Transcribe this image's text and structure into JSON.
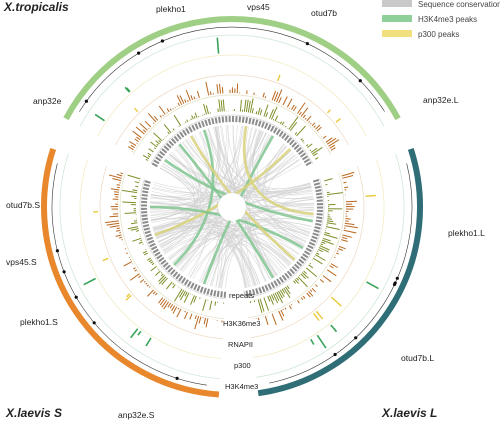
{
  "species": [
    {
      "id": "trop",
      "label": "X.tropicalis",
      "color": "#9fcf85"
    },
    {
      "id": "laevisL",
      "label": "X.laevis L",
      "color": "#2f6d77"
    },
    {
      "id": "laevisS",
      "label": "X.laevis S",
      "color": "#e8872c"
    }
  ],
  "genes": {
    "trop": [
      "plekho1",
      "vps45",
      "otud7b",
      "anp32e"
    ],
    "laevisL": [
      "anp32e.L",
      "plekho1.L",
      "otud7b.L"
    ],
    "laevisS": [
      "otud7b.S",
      "vps45.S",
      "plekho1.S",
      "anp32e.S"
    ]
  },
  "tracks": [
    "repeats",
    "H3K36me3",
    "RNAPII",
    "p300",
    "H3K4me3"
  ],
  "legend": [
    {
      "label": "Sequence conservation",
      "color": "#c9c9c9"
    },
    {
      "label": "H3K4me3 peaks",
      "color": "#8fcf9a"
    },
    {
      "label": "p300 peaks",
      "color": "#f2df7e"
    }
  ],
  "colors": {
    "h3k4me3": "#3aa35a",
    "p300": "#e9c93c",
    "rnapii": "#b9681f",
    "h3k36me3": "#7f8e28",
    "repeats": "#8c8c8c",
    "ribbon_gray": "#cfcfcf",
    "ribbon_green": "#7fc58f",
    "ribbon_yellow": "#d9d27a"
  }
}
